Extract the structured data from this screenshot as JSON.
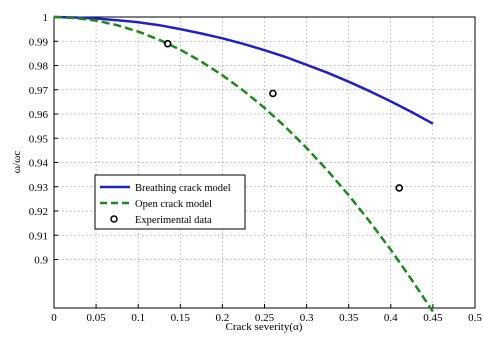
{
  "chart_data": {
    "type": "line",
    "xlabel": "Crack severity(α)",
    "ylabel": "ω/ωc",
    "xlim": [
      0,
      0.5
    ],
    "ylim": [
      0.88,
      1.0
    ],
    "grid": true,
    "legend_position": "left-middle",
    "x_ticks": [
      "0",
      "0.05",
      "0.1",
      "0.15",
      "0.2",
      "0.25",
      "0.3",
      "0.35",
      "0.4",
      "0.45",
      "0.5"
    ],
    "y_ticks": [
      "0.9",
      "0.91",
      "0.92",
      "0.93",
      "0.94",
      "0.95",
      "0.96",
      "0.97",
      "0.98",
      "0.99",
      "1"
    ],
    "series": [
      {
        "name": "Breathing crack model",
        "style": "solid",
        "color": "#2020c8",
        "x": [
          0,
          0.025,
          0.05,
          0.075,
          0.1,
          0.125,
          0.15,
          0.175,
          0.2,
          0.225,
          0.25,
          0.275,
          0.3,
          0.325,
          0.35,
          0.375,
          0.4,
          0.425,
          0.45
        ],
        "y": [
          1.0,
          0.9998,
          0.9994,
          0.9987,
          0.9978,
          0.9966,
          0.995,
          0.9932,
          0.9912,
          0.9889,
          0.9863,
          0.9835,
          0.9803,
          0.977,
          0.9733,
          0.9694,
          0.9652,
          0.9608,
          0.956
        ]
      },
      {
        "name": "Open crack model",
        "style": "dashed",
        "color": "#1a8a1a",
        "x": [
          0,
          0.025,
          0.05,
          0.075,
          0.1,
          0.125,
          0.15,
          0.175,
          0.2,
          0.225,
          0.25,
          0.275,
          0.3,
          0.325,
          0.35,
          0.375,
          0.4,
          0.425,
          0.45
        ],
        "y": [
          1.0,
          0.9996,
          0.9985,
          0.9966,
          0.994,
          0.9906,
          0.9865,
          0.9816,
          0.976,
          0.9696,
          0.9625,
          0.9546,
          0.946,
          0.9366,
          0.9265,
          0.9156,
          0.904,
          0.8916,
          0.8785
        ]
      },
      {
        "name": "Experimental data",
        "style": "markers",
        "color": "#000000",
        "x": [
          0.135,
          0.26,
          0.41
        ],
        "y": [
          0.989,
          0.9685,
          0.9295
        ]
      }
    ]
  }
}
